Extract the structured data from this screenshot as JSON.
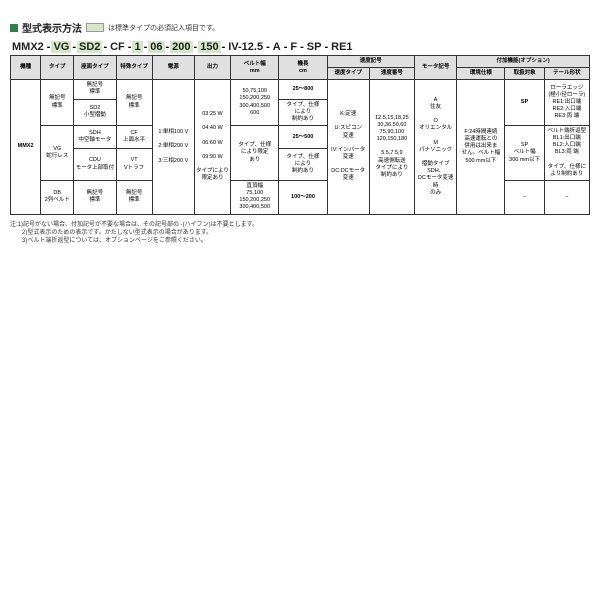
{
  "title": "型式表示方法",
  "legend": "は標準タイプの必須記入項目です。",
  "model": [
    "MMX2",
    "VG",
    "SD2",
    "CF",
    "1",
    "06",
    "200",
    "150",
    "IV-12.5",
    "A",
    "F",
    "SP",
    "RE1"
  ],
  "model_hl": [
    false,
    true,
    true,
    false,
    true,
    true,
    true,
    true,
    false,
    false,
    false,
    false,
    false
  ],
  "headers": {
    "r1": [
      "機種",
      "タイプ",
      "座面タイプ",
      "特殊タイプ",
      "電源",
      "出力",
      "ベルト幅\nmm",
      "機長\ncm",
      "速度記号",
      "モータ記号",
      "付加機能(オプション)"
    ],
    "r2_speed": [
      "速度タイプ",
      "速度番号"
    ],
    "r2_opt": [
      "環境仕様",
      "取扱対象",
      "テール形状"
    ]
  },
  "cells": {
    "kisyu": "MMX2",
    "type1": "無記号\n標準",
    "type2": "VG\n蛇行レス",
    "type3": "DB\n2列ベルト",
    "seat1": "無記号\n標準",
    "seat2": "SD2\n小型摺動",
    "seat3": "SDH\n中空軸モータ",
    "seat4": "CDU\nモータ上部取付",
    "seat5": "無記号\n標準",
    "spec1": "無記号\n標準",
    "spec2": "CF\n上面水平",
    "spec3": "VT\nVトラフ",
    "spec4": "無記号\n標準",
    "pow": "1:単相100 V\n\n2:単相200 V\n\n3:三相200 V",
    "out": "03:25 W\n\n04:40 W\n\n06:60 W\n\n09:90 W\n\nタイプにより\n限定あり",
    "belt1": "50,75,100\n150,200,250\n300,400,500\n600",
    "belt2": "タイプ、仕様\nにより限定\nあり",
    "belt3": "直頂幅\n75,100\n150,200,250\n300,400,500",
    "len1": "25〜800",
    "len2": "タイプ、仕様\nにより\n制約あり",
    "len3": "25〜500",
    "len4": "タイプ、仕様\nにより\n制約あり",
    "len5": "100〜200",
    "spd1": "K:定速\n\nU:スピコン\n変速\n\nIV:インバータ\n変速\n\nDC:DCモータ\n変速",
    "spd2": "12.5,15,18,25\n30,36,50,60\n75,90,100\n120,150,180\n\n5.5,7.5,9\n高速側転送\nタイプにより\n制約あり",
    "mot": "A\n住友\n\nO\nオリエンタル\n\nM\nパナソニック\n\n摺動タイプSDH、\nDCモータ変速時\nのみ",
    "env": "F:24時間連続\n高速運転との\n併用は出来ま\nせん。ベルト幅\n500 mm以下",
    "obj1": "SP",
    "obj2": "SP\nベルト幅\n300 mm以下",
    "obj3": "−",
    "tail1": "ローラエッジ\n(極小径ローラ)\nRE1:出口端\nRE2:入口端\nRE3:両 端",
    "tail2": "ベルト端折返型\nBL1:出口端\nBL2:入口端\nBL3:両 端\n\nタイプ、仕様に\nより制約あり",
    "tail3": "−"
  },
  "notes": [
    "注:1)記号がない場合、付加記号が不要な場合は、その記号部の -(ハイフン)は不要とします。",
    "　　2)型式表示のための表示です。かたしない型式表示の場合があります。",
    "　　3)ベルト端折返型については、オプションページをご参照ください。"
  ],
  "colors": {
    "green": "#2e7d4a",
    "hl": "#d4e8c8",
    "hdr": "#e0e0e0",
    "border": "#333"
  }
}
